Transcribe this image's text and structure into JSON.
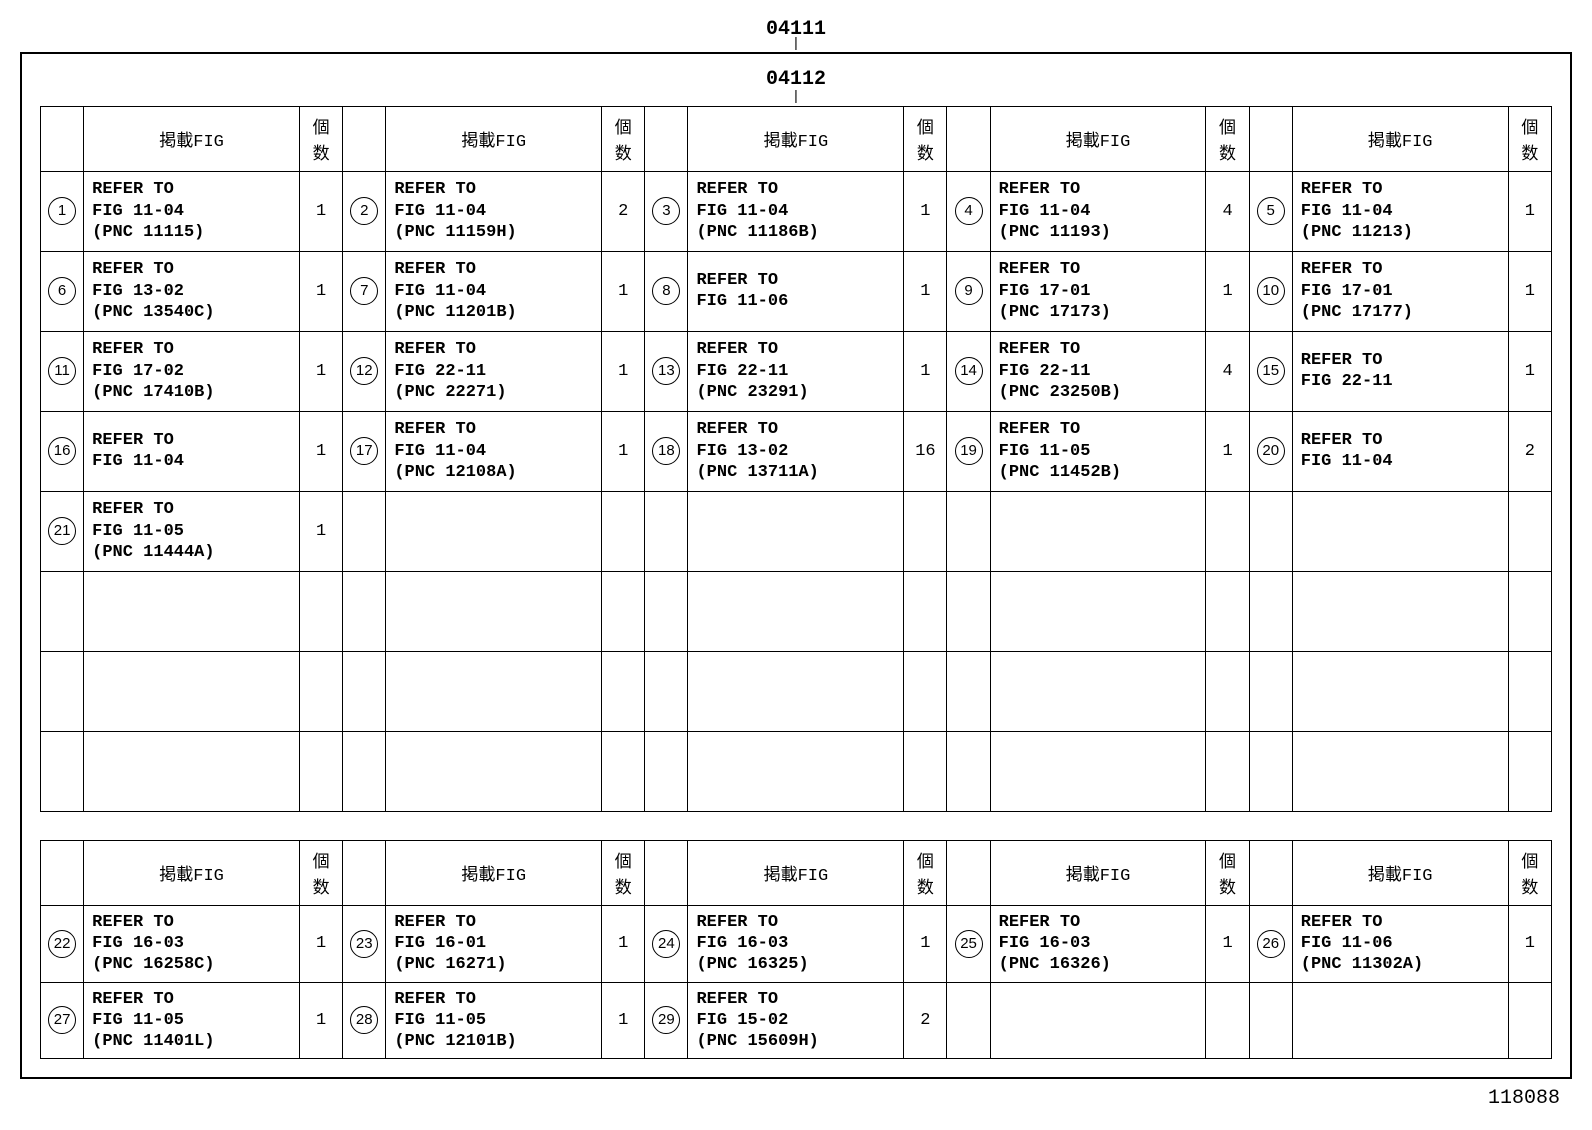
{
  "code_top": "04111",
  "code_inner": "04112",
  "page_number": "118088",
  "headers": {
    "fig": "掲載FIG",
    "qty": "個数"
  },
  "table1_rows": [
    [
      {
        "n": "1",
        "fig": "REFER TO\nFIG 11-04\n(PNC 11115)",
        "q": "1"
      },
      {
        "n": "2",
        "fig": "REFER TO\nFIG 11-04\n(PNC 11159H)",
        "q": "2"
      },
      {
        "n": "3",
        "fig": "REFER TO\nFIG 11-04\n(PNC 11186B)",
        "q": "1"
      },
      {
        "n": "4",
        "fig": "REFER TO\nFIG 11-04\n(PNC 11193)",
        "q": "4"
      },
      {
        "n": "5",
        "fig": "REFER TO\nFIG 11-04\n(PNC 11213)",
        "q": "1"
      }
    ],
    [
      {
        "n": "6",
        "fig": "REFER TO\nFIG 13-02\n(PNC 13540C)",
        "q": "1"
      },
      {
        "n": "7",
        "fig": "REFER TO\nFIG 11-04\n(PNC 11201B)",
        "q": "1"
      },
      {
        "n": "8",
        "fig": "REFER TO\nFIG 11-06",
        "q": "1"
      },
      {
        "n": "9",
        "fig": "REFER TO\nFIG 17-01\n(PNC 17173)",
        "q": "1"
      },
      {
        "n": "10",
        "fig": "REFER TO\nFIG 17-01\n(PNC 17177)",
        "q": "1"
      }
    ],
    [
      {
        "n": "11",
        "fig": "REFER TO\nFIG 17-02\n(PNC 17410B)",
        "q": "1"
      },
      {
        "n": "12",
        "fig": "REFER TO\nFIG 22-11\n(PNC 22271)",
        "q": "1"
      },
      {
        "n": "13",
        "fig": "REFER TO\nFIG 22-11\n(PNC 23291)",
        "q": "1"
      },
      {
        "n": "14",
        "fig": "REFER TO\nFIG 22-11\n(PNC 23250B)",
        "q": "4"
      },
      {
        "n": "15",
        "fig": "REFER TO\nFIG 22-11",
        "q": "1"
      }
    ],
    [
      {
        "n": "16",
        "fig": "REFER TO\nFIG 11-04",
        "q": "1"
      },
      {
        "n": "17",
        "fig": "REFER TO\nFIG 11-04\n(PNC 12108A)",
        "q": "1"
      },
      {
        "n": "18",
        "fig": "REFER TO\nFIG 13-02\n(PNC 13711A)",
        "q": "16"
      },
      {
        "n": "19",
        "fig": "REFER TO\nFIG 11-05\n(PNC 11452B)",
        "q": "1"
      },
      {
        "n": "20",
        "fig": "REFER TO\nFIG 11-04",
        "q": "2"
      }
    ],
    [
      {
        "n": "21",
        "fig": "REFER TO\nFIG 11-05\n(PNC 11444A)",
        "q": "1"
      },
      {
        "n": "",
        "fig": "",
        "q": ""
      },
      {
        "n": "",
        "fig": "",
        "q": ""
      },
      {
        "n": "",
        "fig": "",
        "q": ""
      },
      {
        "n": "",
        "fig": "",
        "q": ""
      }
    ],
    [
      {
        "n": "",
        "fig": "",
        "q": ""
      },
      {
        "n": "",
        "fig": "",
        "q": ""
      },
      {
        "n": "",
        "fig": "",
        "q": ""
      },
      {
        "n": "",
        "fig": "",
        "q": ""
      },
      {
        "n": "",
        "fig": "",
        "q": ""
      }
    ],
    [
      {
        "n": "",
        "fig": "",
        "q": ""
      },
      {
        "n": "",
        "fig": "",
        "q": ""
      },
      {
        "n": "",
        "fig": "",
        "q": ""
      },
      {
        "n": "",
        "fig": "",
        "q": ""
      },
      {
        "n": "",
        "fig": "",
        "q": ""
      }
    ],
    [
      {
        "n": "",
        "fig": "",
        "q": ""
      },
      {
        "n": "",
        "fig": "",
        "q": ""
      },
      {
        "n": "",
        "fig": "",
        "q": ""
      },
      {
        "n": "",
        "fig": "",
        "q": ""
      },
      {
        "n": "",
        "fig": "",
        "q": ""
      }
    ]
  ],
  "table2_rows": [
    [
      {
        "n": "22",
        "fig": "REFER TO\nFIG 16-03\n(PNC 16258C)",
        "q": "1"
      },
      {
        "n": "23",
        "fig": "REFER TO\nFIG 16-01\n(PNC 16271)",
        "q": "1"
      },
      {
        "n": "24",
        "fig": "REFER TO\nFIG 16-03\n(PNC 16325)",
        "q": "1"
      },
      {
        "n": "25",
        "fig": "REFER TO\nFIG 16-03\n(PNC 16326)",
        "q": "1"
      },
      {
        "n": "26",
        "fig": "REFER TO\nFIG 11-06\n(PNC 11302A)",
        "q": "1"
      }
    ],
    [
      {
        "n": "27",
        "fig": "REFER TO\nFIG 11-05\n(PNC 11401L)",
        "q": "1"
      },
      {
        "n": "28",
        "fig": "REFER TO\nFIG 11-05\n(PNC 12101B)",
        "q": "1"
      },
      {
        "n": "29",
        "fig": "REFER TO\nFIG 15-02\n(PNC 15609H)",
        "q": "2"
      },
      {
        "n": "",
        "fig": "",
        "q": ""
      },
      {
        "n": "",
        "fig": "",
        "q": ""
      }
    ]
  ]
}
